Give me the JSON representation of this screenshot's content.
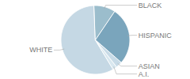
{
  "chart_data": {
    "type": "pie",
    "categories": [
      "WHITE",
      "A.I.",
      "ASIAN",
      "HISPANIC",
      "BLACK"
    ],
    "values": [
      58,
      2,
      3,
      27,
      10
    ],
    "colors": [
      "#c5d8e4",
      "#d8e7ef",
      "#c8dbe7",
      "#7aa5bc",
      "#9bbdcc"
    ]
  }
}
